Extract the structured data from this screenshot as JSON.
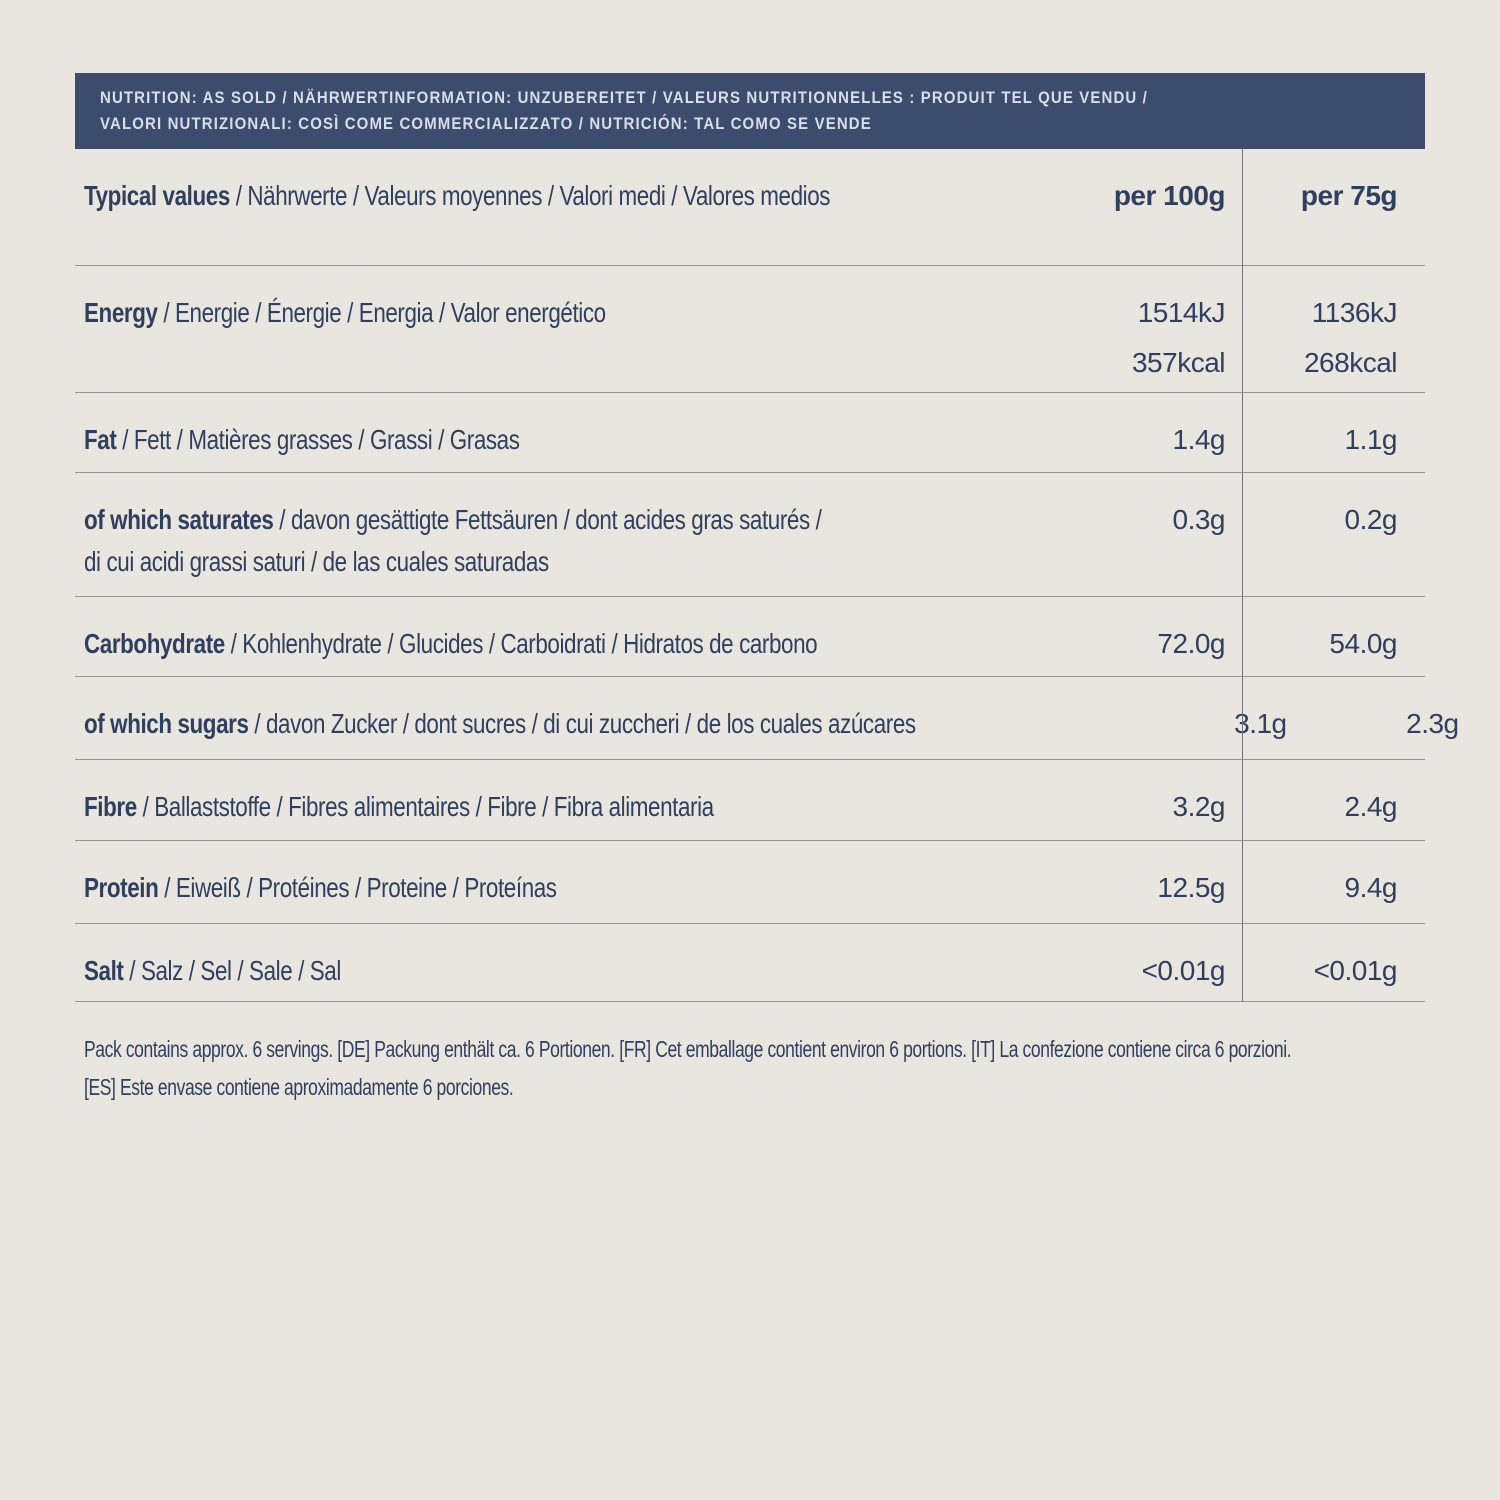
{
  "colors": {
    "background": "#e9e6df",
    "band_background": "#3c4c6d",
    "band_text": "#d9dee9",
    "table_text": "#2f3f5f",
    "row_divider": "#98978f",
    "column_divider": "#70747e"
  },
  "band": {
    "lines": [
      "NUTRITION: AS SOLD / NÄHRWERTINFORMATION: UNZUBEREITET / VALEURS NUTRITIONNELLES : PRODUIT TEL QUE VENDU /",
      "VALORI NUTRIZIONALI: COSÌ COME COMMERCIALIZZATO / NUTRICIÓN: TAL COMO SE VENDE"
    ]
  },
  "table": {
    "header_row": {
      "term": "Typical values",
      "rest": " / Nährwerte / Valeurs moyennes / Valori medi / Valores medios",
      "col1": "per 100g",
      "col2": "per 75g"
    },
    "rows": [
      {
        "term": "Energy",
        "rest": " / Energie / Énergie / Energia / Valor energético",
        "v100a": "1514kJ",
        "v100b": "357kcal",
        "v75a": "1136kJ",
        "v75b": "268kcal"
      },
      {
        "term": "Fat",
        "rest": " / Fett / Matières grasses / Grassi / Grasas",
        "v100": "1.4g",
        "v75": "1.1g"
      },
      {
        "term": "of which saturates",
        "rest": " / davon gesättigte Fettsäuren / dont acides gras saturés /",
        "rest2": "di cui acidi grassi saturi / de las cuales saturadas",
        "v100": "0.3g",
        "v75": "0.2g"
      },
      {
        "term": "Carbohydrate",
        "rest": " / Kohlenhydrate / Glucides / Carboidrati / Hidratos de carbono",
        "v100": "72.0g",
        "v75": "54.0g"
      },
      {
        "term": "of which sugars",
        "rest": " / davon Zucker / dont sucres / di cui zuccheri / de los cuales azúcares",
        "v100": "3.1g",
        "v75": "2.3g"
      },
      {
        "term": "Fibre",
        "rest": " / Ballaststoffe / Fibres alimentaires / Fibre / Fibra alimentaria",
        "v100": "3.2g",
        "v75": "2.4g"
      },
      {
        "term": "Protein",
        "rest": " / Eiweiß / Protéines / Proteine / Proteínas",
        "v100": "12.5g",
        "v75": "9.4g"
      },
      {
        "term": "Salt",
        "rest": " / Salz / Sel / Sale / Sal",
        "v100": "<0.01g",
        "v75": "<0.01g"
      }
    ]
  },
  "footer": {
    "lines": [
      "Pack contains approx. 6 servings. [DE] Packung enthält ca. 6 Portionen. [FR] Cet emballage contient environ 6 portions. [IT] La confezione contiene circa 6 porzioni.",
      "[ES] Este envase contiene aproximadamente 6 porciones."
    ]
  }
}
